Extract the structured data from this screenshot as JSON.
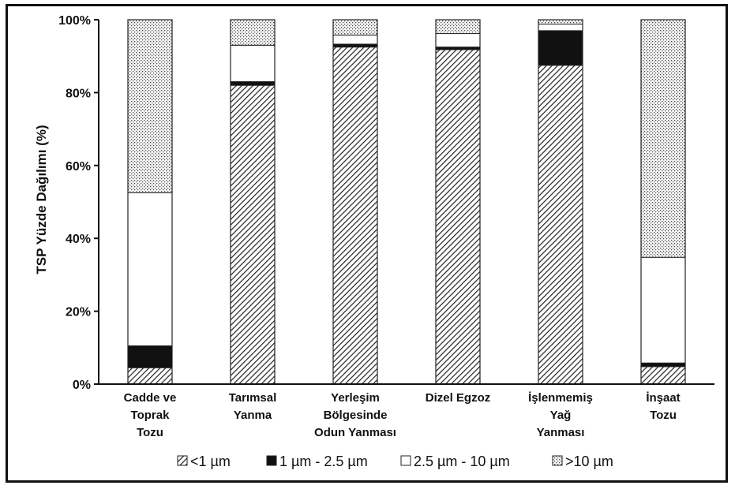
{
  "chart_data": {
    "type": "bar",
    "stacked": true,
    "ylabel": "TSP Yüzde Dağılımı (%)",
    "yticks": [
      "0%",
      "20%",
      "40%",
      "60%",
      "80%",
      "100%"
    ],
    "ylim": [
      0,
      100
    ],
    "categories": [
      [
        "Cadde ve",
        "Toprak",
        "Tozu"
      ],
      [
        "Tarımsal",
        "Yanma"
      ],
      [
        "Yerleşim",
        "Bölgesinde",
        "Odun Yanması"
      ],
      [
        "Dizel Egzoz"
      ],
      [
        "İşlenmemiş",
        "Yağ",
        "Yanması"
      ],
      [
        "İnşaat",
        "Tozu"
      ]
    ],
    "series": [
      {
        "name": "<1 µm",
        "pattern": "hatch",
        "values": [
          4.5,
          82,
          92.5,
          91.8,
          87.5,
          4.8
        ]
      },
      {
        "name": "1 µm - 2.5 µm",
        "pattern": "solid",
        "values": [
          6,
          1,
          0.8,
          0.7,
          9.5,
          1
        ]
      },
      {
        "name": "2.5 µm - 10 µm",
        "pattern": "open",
        "values": [
          42,
          10,
          2.5,
          3.7,
          1.8,
          29
        ]
      },
      {
        "name": ">10 µm",
        "pattern": "dots",
        "values": [
          47.5,
          7,
          4.2,
          3.8,
          1.2,
          65.2
        ]
      }
    ],
    "legend_position": "bottom",
    "grid": false
  }
}
